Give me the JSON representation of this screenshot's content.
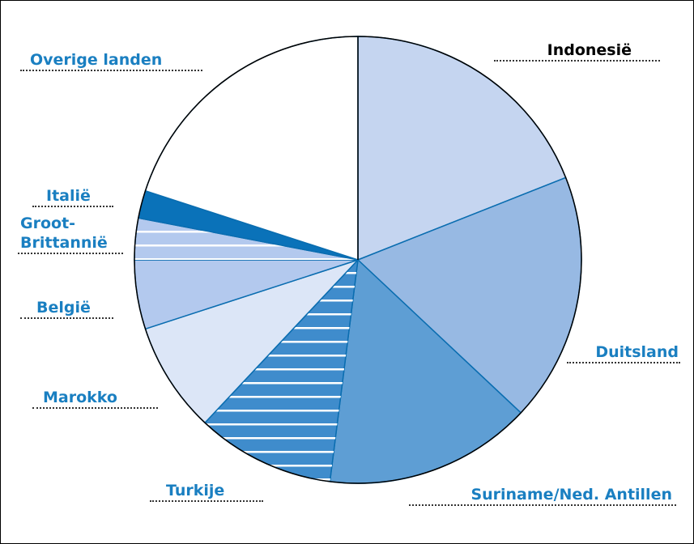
{
  "chart_data": {
    "type": "pie",
    "categories": [
      "Indonesië",
      "Duitsland",
      "Suriname/Ned. Antillen",
      "Turkije",
      "Marokko",
      "België",
      "Groot-Brittannië",
      "Italië",
      "Overige landen"
    ],
    "values": [
      19,
      18,
      15,
      10,
      8,
      5,
      3,
      2,
      20
    ],
    "colors": [
      "#c5d5f0",
      "#97b9e3",
      "#5e9ed4",
      "#3f8ccc",
      "#dce6f7",
      "#b3c9ee",
      "#b3c9ee",
      "#0a72b9",
      "#ffffff"
    ],
    "hatched": [
      false,
      false,
      false,
      true,
      false,
      false,
      true,
      false,
      false
    ]
  }
}
